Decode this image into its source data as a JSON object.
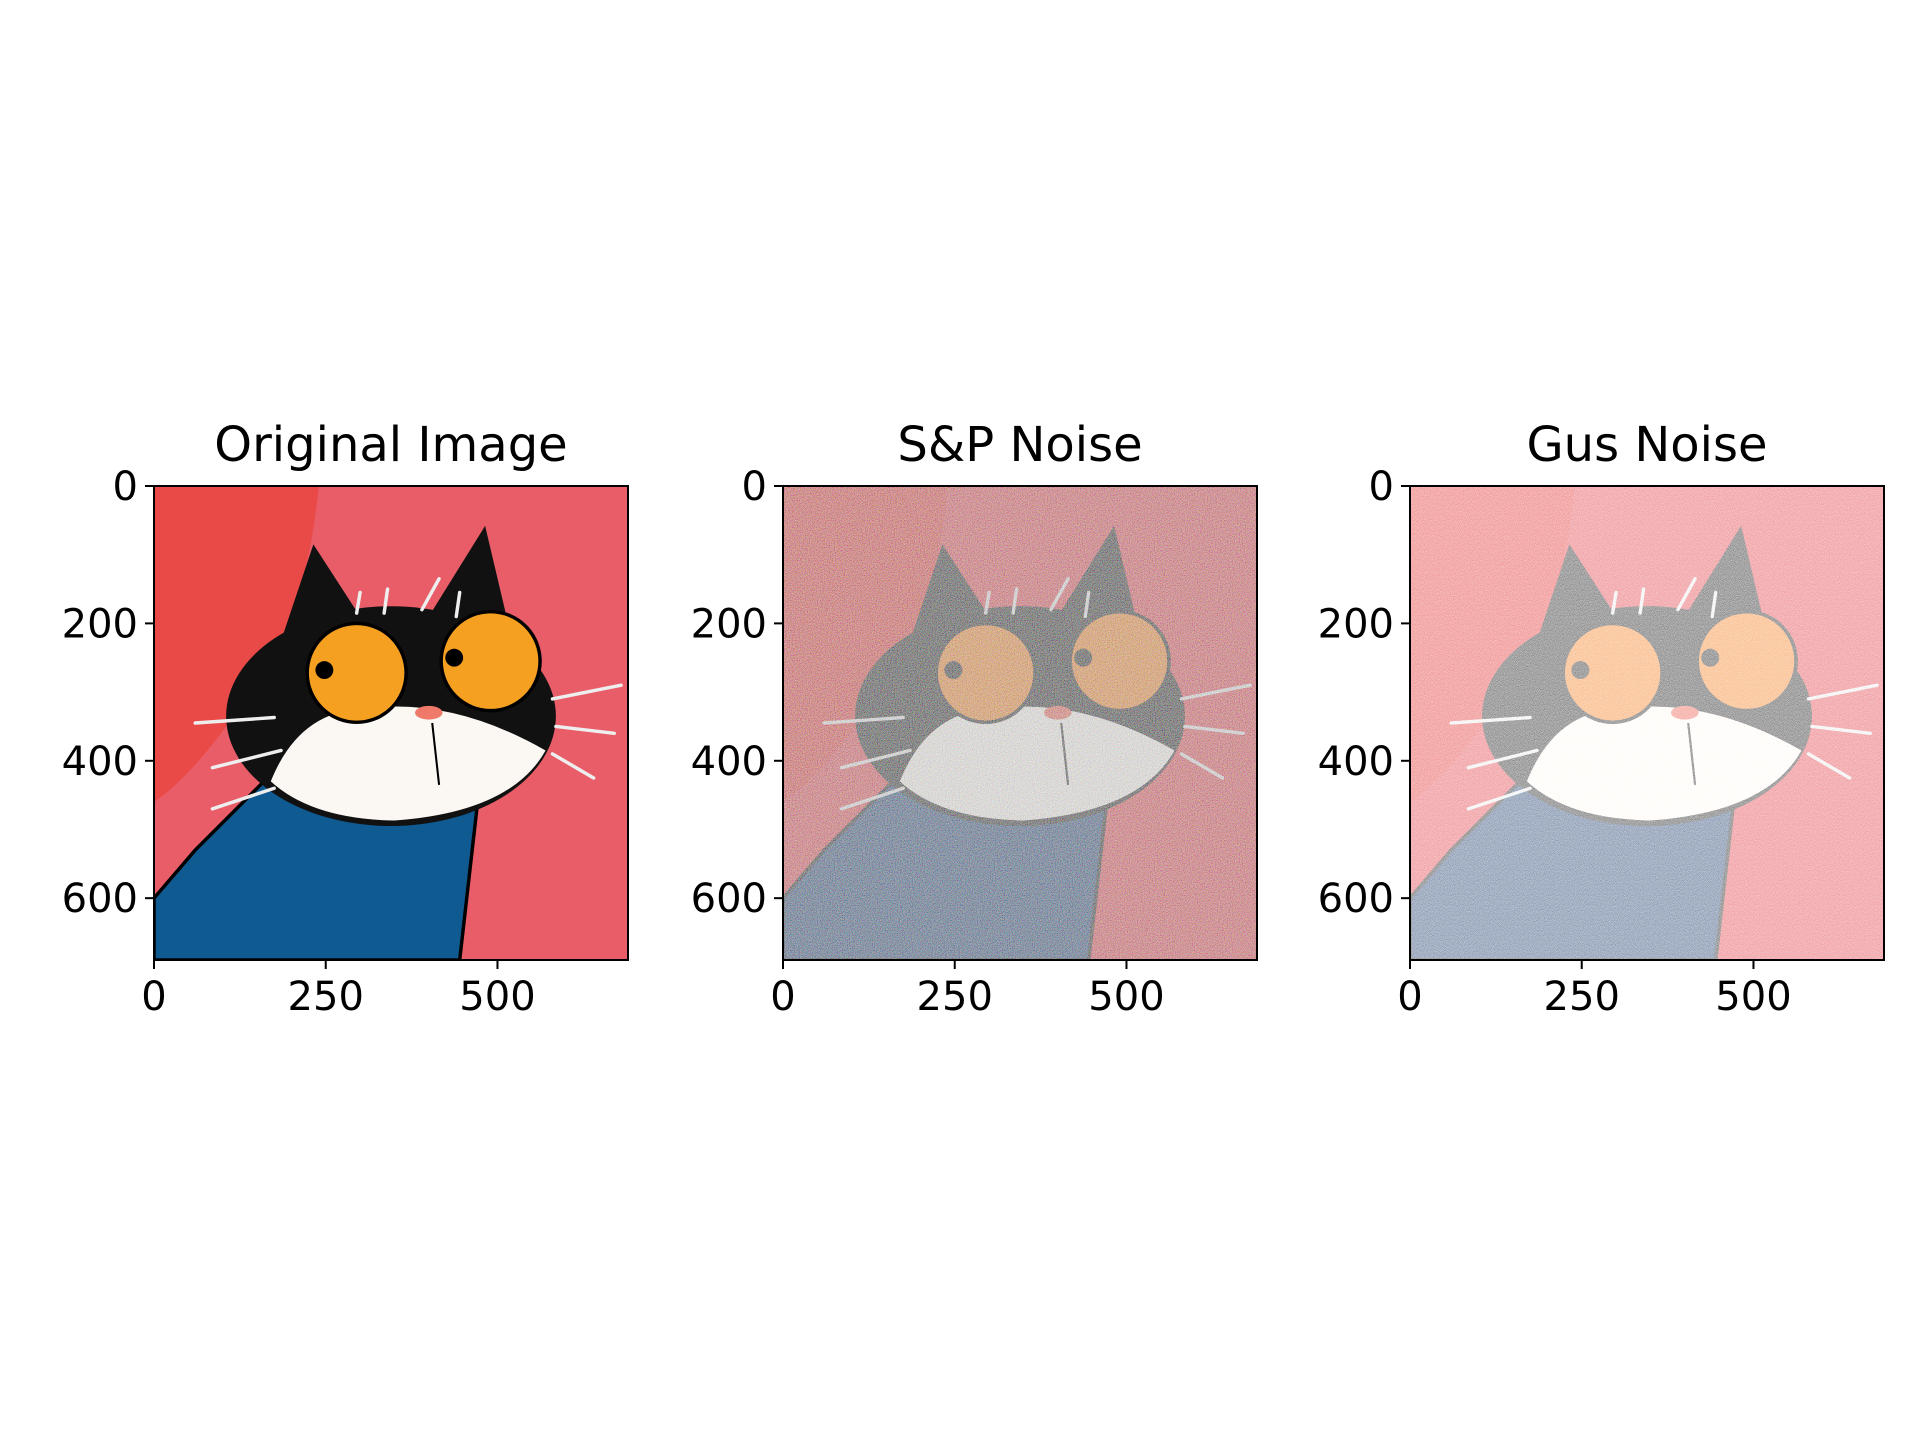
{
  "chart_data": [
    {
      "type": "image",
      "title": "Original Image",
      "xlim": [
        0,
        690
      ],
      "ylim": [
        690,
        0
      ],
      "xticks": [
        0,
        250,
        500
      ],
      "yticks": [
        0,
        200,
        400,
        600
      ]
    },
    {
      "type": "image",
      "title": "S&P Noise",
      "xlim": [
        0,
        690
      ],
      "ylim": [
        690,
        0
      ],
      "xticks": [
        0,
        250,
        500
      ],
      "yticks": [
        0,
        200,
        400,
        600
      ]
    },
    {
      "type": "image",
      "title": "Gus Noise",
      "xlim": [
        0,
        690
      ],
      "ylim": [
        690,
        0
      ],
      "xticks": [
        0,
        250,
        500
      ],
      "yticks": [
        0,
        200,
        400,
        600
      ]
    }
  ]
}
